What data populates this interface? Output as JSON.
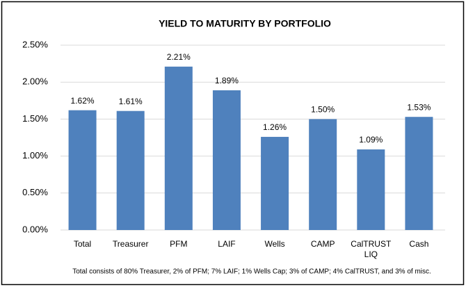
{
  "chart_data": {
    "type": "bar",
    "title": "YIELD TO MATURITY BY PORTFOLIO",
    "categories": [
      "Total",
      "Treasurer",
      "PFM",
      "LAIF",
      "Wells",
      "CAMP",
      "CalTRUST LIQ",
      "Cash"
    ],
    "values": [
      1.62,
      1.61,
      2.21,
      1.89,
      1.26,
      1.5,
      1.09,
      1.53
    ],
    "value_labels": [
      "1.62%",
      "1.61%",
      "2.21%",
      "1.89%",
      "1.26%",
      "1.50%",
      "1.09%",
      "1.53%"
    ],
    "color": "#4f81bd",
    "ylim": [
      0,
      2.5
    ],
    "yticks": [
      {
        "value": 0,
        "label": "0.00%"
      },
      {
        "value": 0.5,
        "label": "0.50%"
      },
      {
        "value": 1,
        "label": "1.00%"
      },
      {
        "value": 1.5,
        "label": "1.50%"
      },
      {
        "value": 2,
        "label": "2.00%"
      },
      {
        "value": 2.5,
        "label": "2.50%"
      }
    ],
    "grid": true,
    "footnote": "Total consists of 80% Treasurer, 2% of PFM; 7% LAIF; 1% Wells Cap; 3% of CAMP; 4% CalTRUST, and 3% of misc."
  }
}
